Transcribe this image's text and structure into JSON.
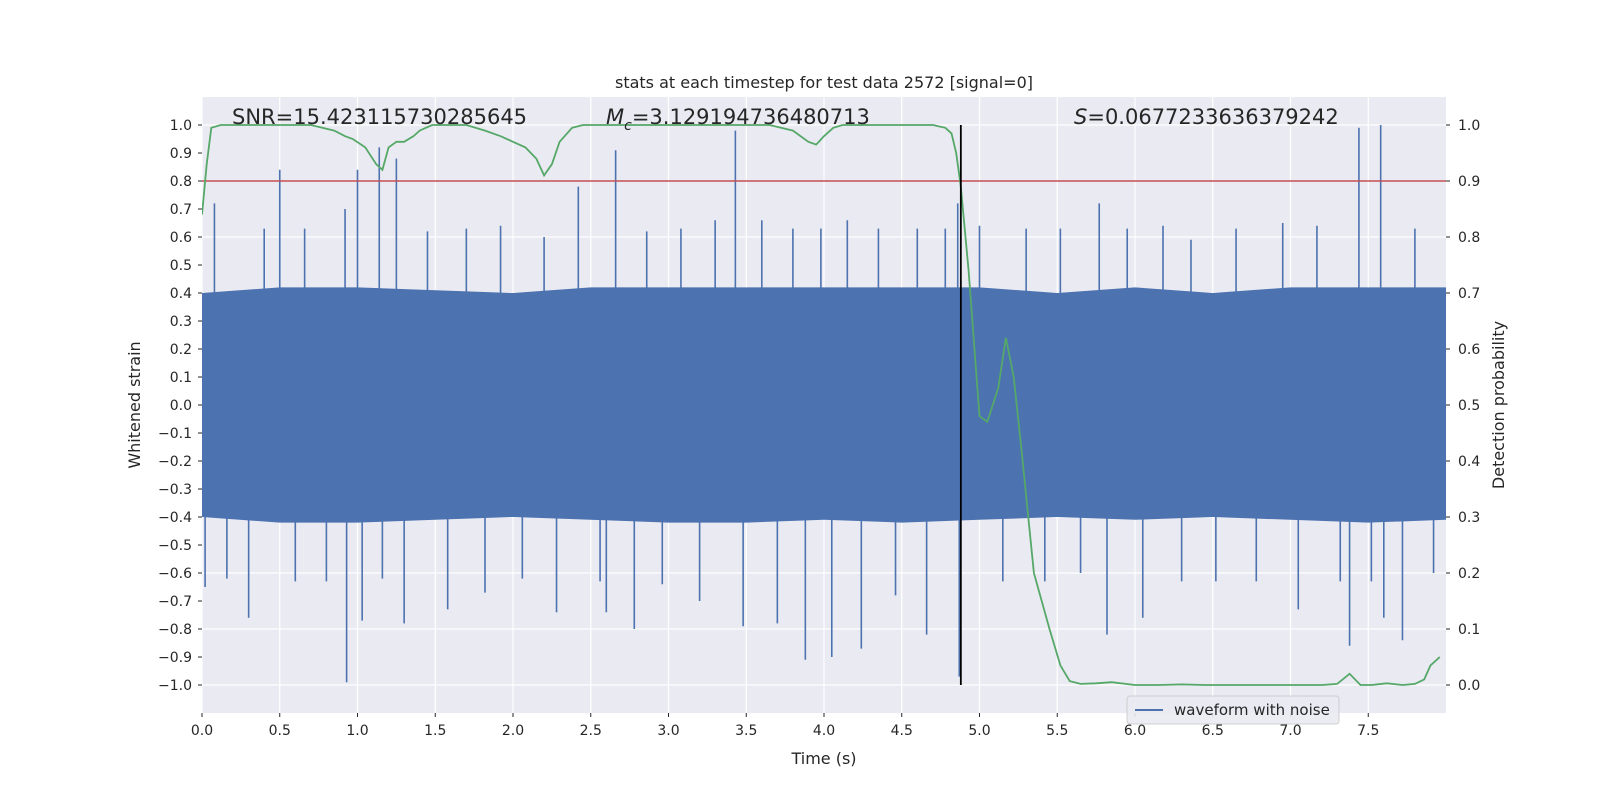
{
  "chart_data": {
    "type": "line",
    "title": "stats at each timestep for test data 2572 [signal=0]",
    "xlabel": "Time (s)",
    "ylabel": "Whitened strain",
    "y2label": "Detection probability",
    "xlim": [
      0,
      8
    ],
    "ylim": [
      -1.1,
      1.1
    ],
    "y2lim": [
      -0.05,
      1.05
    ],
    "grid": true,
    "legend_position": "lower-right",
    "x_ticks": [
      "0.0",
      "0.5",
      "1.0",
      "1.5",
      "2.0",
      "2.5",
      "3.0",
      "3.5",
      "4.0",
      "4.5",
      "5.0",
      "5.5",
      "6.0",
      "6.5",
      "7.0",
      "7.5"
    ],
    "y_ticks": [
      "1.0",
      "0.9",
      "0.8",
      "0.7",
      "0.6",
      "0.5",
      "0.4",
      "0.3",
      "0.2",
      "0.1",
      "0.0",
      "−0.1",
      "−0.2",
      "−0.3",
      "−0.4",
      "−0.5",
      "−0.6",
      "−0.7",
      "−0.8",
      "−0.9",
      "−1.0"
    ],
    "y2_ticks": [
      "1.0",
      "0.9",
      "0.8",
      "0.7",
      "0.6",
      "0.5",
      "0.4",
      "0.3",
      "0.2",
      "0.1",
      "0.0"
    ],
    "annotations": {
      "snr": "SNR=15.423115730285645",
      "mc_symbol": "M",
      "mc_sub": "c",
      "mc_value": "=3.129194736480713",
      "s_symbol": "S",
      "s_value": "=0.0677233636379242"
    },
    "series": [
      {
        "name": "waveform with noise",
        "axis": "left",
        "color": "#4c72b0",
        "envelope": {
          "x": [
            0.0,
            0.5,
            1.0,
            1.5,
            2.0,
            2.5,
            3.0,
            3.5,
            4.0,
            4.5,
            5.0,
            5.5,
            6.0,
            6.5,
            7.0,
            7.5,
            8.0
          ],
          "upper": [
            0.4,
            0.42,
            0.42,
            0.41,
            0.4,
            0.42,
            0.42,
            0.42,
            0.42,
            0.42,
            0.42,
            0.4,
            0.42,
            0.4,
            0.42,
            0.42,
            0.42
          ],
          "lower": [
            -0.4,
            -0.42,
            -0.42,
            -0.41,
            -0.4,
            -0.41,
            -0.42,
            -0.42,
            -0.41,
            -0.42,
            -0.41,
            -0.4,
            -0.41,
            -0.4,
            -0.41,
            -0.42,
            -0.41
          ]
        },
        "spikes": [
          [
            0.02,
            -0.65
          ],
          [
            0.08,
            0.72
          ],
          [
            0.16,
            -0.62
          ],
          [
            0.3,
            -0.76
          ],
          [
            0.4,
            0.63
          ],
          [
            0.5,
            0.84
          ],
          [
            0.6,
            -0.63
          ],
          [
            0.66,
            0.63
          ],
          [
            0.8,
            -0.63
          ],
          [
            0.92,
            0.7
          ],
          [
            0.93,
            -0.99
          ],
          [
            1.0,
            0.84
          ],
          [
            1.03,
            -0.77
          ],
          [
            1.14,
            0.92
          ],
          [
            1.16,
            -0.62
          ],
          [
            1.25,
            0.88
          ],
          [
            1.3,
            -0.78
          ],
          [
            1.45,
            0.62
          ],
          [
            1.58,
            -0.73
          ],
          [
            1.7,
            0.63
          ],
          [
            1.82,
            -0.67
          ],
          [
            1.92,
            0.64
          ],
          [
            2.06,
            -0.62
          ],
          [
            2.2,
            0.6
          ],
          [
            2.28,
            -0.74
          ],
          [
            2.42,
            0.78
          ],
          [
            2.56,
            -0.63
          ],
          [
            2.6,
            -0.74
          ],
          [
            2.66,
            0.91
          ],
          [
            2.78,
            -0.8
          ],
          [
            2.86,
            0.62
          ],
          [
            2.96,
            -0.64
          ],
          [
            3.08,
            0.63
          ],
          [
            3.2,
            -0.7
          ],
          [
            3.3,
            0.66
          ],
          [
            3.43,
            0.98
          ],
          [
            3.48,
            -0.79
          ],
          [
            3.6,
            0.66
          ],
          [
            3.7,
            -0.78
          ],
          [
            3.8,
            0.63
          ],
          [
            3.88,
            -0.91
          ],
          [
            3.98,
            0.63
          ],
          [
            4.05,
            -0.9
          ],
          [
            4.15,
            0.66
          ],
          [
            4.24,
            -0.87
          ],
          [
            4.35,
            0.63
          ],
          [
            4.46,
            -0.68
          ],
          [
            4.6,
            0.63
          ],
          [
            4.66,
            -0.82
          ],
          [
            4.78,
            0.63
          ],
          [
            4.86,
            0.72
          ],
          [
            4.87,
            -0.97
          ],
          [
            5.0,
            0.64
          ],
          [
            5.15,
            -0.63
          ],
          [
            5.3,
            0.63
          ],
          [
            5.42,
            -0.63
          ],
          [
            5.52,
            0.63
          ],
          [
            5.65,
            -0.6
          ],
          [
            5.77,
            0.72
          ],
          [
            5.82,
            -0.82
          ],
          [
            5.95,
            0.63
          ],
          [
            6.05,
            -0.76
          ],
          [
            6.18,
            0.64
          ],
          [
            6.3,
            -0.63
          ],
          [
            6.36,
            0.59
          ],
          [
            6.52,
            -0.63
          ],
          [
            6.65,
            0.63
          ],
          [
            6.78,
            -0.63
          ],
          [
            6.95,
            0.65
          ],
          [
            7.05,
            -0.73
          ],
          [
            7.17,
            0.64
          ],
          [
            7.32,
            -0.63
          ],
          [
            7.38,
            -0.86
          ],
          [
            7.44,
            0.99
          ],
          [
            7.52,
            -0.63
          ],
          [
            7.58,
            1.0
          ],
          [
            7.6,
            -0.76
          ],
          [
            7.72,
            -0.84
          ],
          [
            7.8,
            0.63
          ],
          [
            7.92,
            -0.6
          ]
        ]
      },
      {
        "name": "",
        "axis": "right",
        "color": "#55a868",
        "x": [
          0.0,
          0.03,
          0.06,
          0.12,
          0.2,
          0.35,
          0.55,
          0.7,
          0.85,
          0.92,
          0.97,
          1.05,
          1.12,
          1.16,
          1.2,
          1.25,
          1.3,
          1.36,
          1.4,
          1.48,
          1.55,
          1.7,
          1.82,
          1.92,
          2.0,
          2.08,
          2.15,
          2.2,
          2.25,
          2.3,
          2.38,
          2.45,
          2.55,
          2.7,
          2.9,
          3.1,
          3.3,
          3.5,
          3.65,
          3.8,
          3.9,
          3.95,
          4.0,
          4.06,
          4.12,
          4.2,
          4.35,
          4.55,
          4.7,
          4.78,
          4.82,
          4.85,
          4.88,
          4.93,
          5.0,
          5.05,
          5.12,
          5.17,
          5.22,
          5.27,
          5.35,
          5.45,
          5.52,
          5.58,
          5.65,
          5.75,
          5.85,
          6.0,
          6.15,
          6.3,
          6.45,
          6.6,
          6.8,
          7.0,
          7.2,
          7.3,
          7.38,
          7.45,
          7.52,
          7.62,
          7.72,
          7.8,
          7.86,
          7.9,
          7.96
        ],
        "values": [
          0.84,
          0.93,
          0.995,
          1.0,
          1.0,
          1.0,
          1.0,
          1.0,
          0.99,
          0.98,
          0.975,
          0.96,
          0.93,
          0.92,
          0.96,
          0.97,
          0.97,
          0.98,
          0.99,
          1.0,
          1.0,
          1.0,
          0.99,
          0.98,
          0.97,
          0.96,
          0.94,
          0.91,
          0.93,
          0.97,
          0.995,
          1.0,
          1.0,
          1.0,
          1.0,
          1.0,
          1.0,
          1.0,
          1.0,
          0.99,
          0.97,
          0.965,
          0.98,
          0.995,
          1.0,
          1.0,
          1.0,
          1.0,
          1.0,
          0.995,
          0.985,
          0.95,
          0.89,
          0.74,
          0.48,
          0.47,
          0.53,
          0.62,
          0.55,
          0.42,
          0.2,
          0.1,
          0.035,
          0.007,
          0.002,
          0.003,
          0.005,
          0.0,
          0.0,
          0.001,
          0.0,
          0.0,
          0.0,
          0.0,
          0.0,
          0.002,
          0.02,
          0.0,
          0.0,
          0.003,
          0.0,
          0.002,
          0.01,
          0.035,
          0.05
        ]
      }
    ],
    "threshold": {
      "axis": "left",
      "y": 0.8,
      "color": "#c44e52"
    },
    "vertical_marker": {
      "x": 4.88,
      "color": "#000000"
    }
  }
}
